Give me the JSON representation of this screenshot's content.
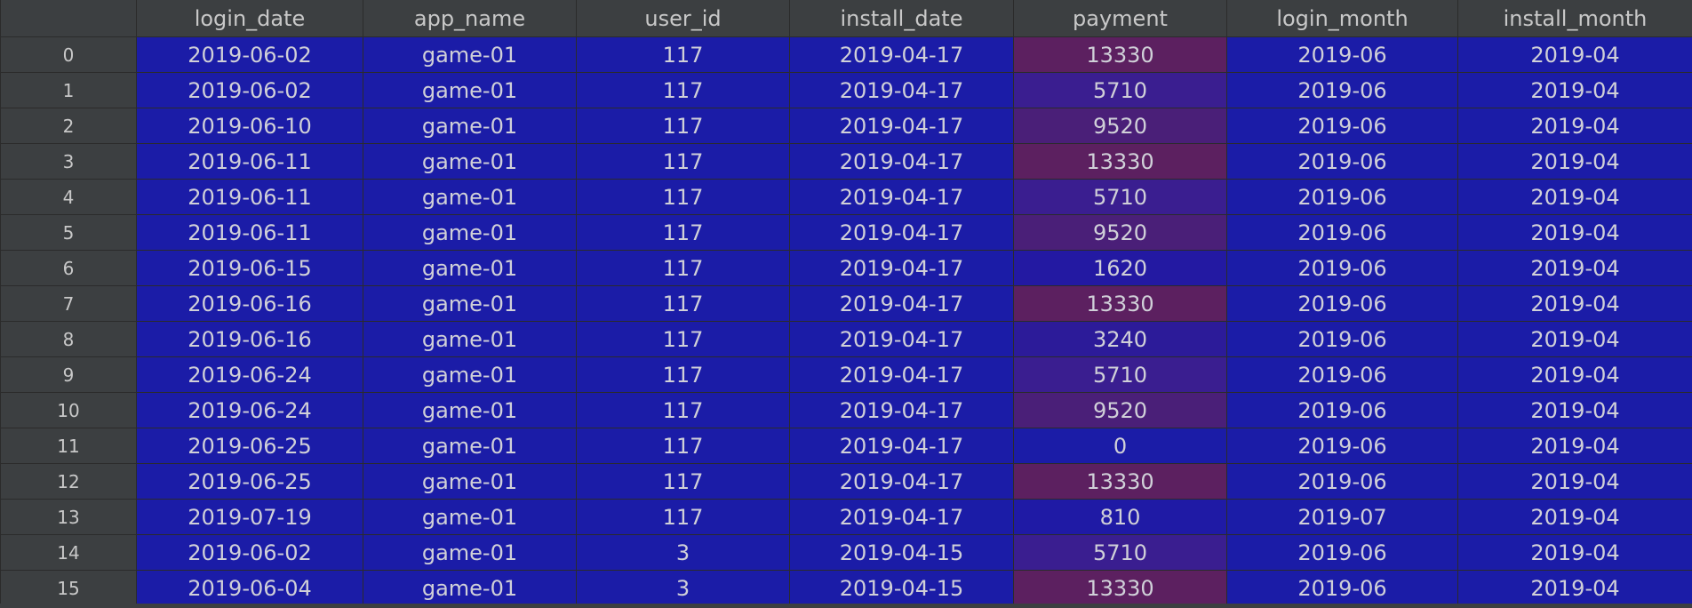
{
  "columns": [
    "",
    "login_date",
    "app_name",
    "user_id",
    "install_date",
    "payment",
    "login_month",
    "install_month"
  ],
  "rows": [
    {
      "index": "0",
      "cells": [
        "2019-06-02",
        "game-01",
        "117",
        "2019-04-17",
        "13330",
        "2019-06",
        "2019-04"
      ],
      "payment_color": "#5c2060"
    },
    {
      "index": "1",
      "cells": [
        "2019-06-02",
        "game-01",
        "117",
        "2019-04-17",
        "5710",
        "2019-06",
        "2019-04"
      ],
      "payment_color": "#3a1e90"
    },
    {
      "index": "2",
      "cells": [
        "2019-06-10",
        "game-01",
        "117",
        "2019-04-17",
        "9520",
        "2019-06",
        "2019-04"
      ],
      "payment_color": "#4a1f78"
    },
    {
      "index": "3",
      "cells": [
        "2019-06-11",
        "game-01",
        "117",
        "2019-04-17",
        "13330",
        "2019-06",
        "2019-04"
      ],
      "payment_color": "#5c2060"
    },
    {
      "index": "4",
      "cells": [
        "2019-06-11",
        "game-01",
        "117",
        "2019-04-17",
        "5710",
        "2019-06",
        "2019-04"
      ],
      "payment_color": "#3a1e90"
    },
    {
      "index": "5",
      "cells": [
        "2019-06-11",
        "game-01",
        "117",
        "2019-04-17",
        "9520",
        "2019-06",
        "2019-04"
      ],
      "payment_color": "#4a1f78"
    },
    {
      "index": "6",
      "cells": [
        "2019-06-15",
        "game-01",
        "117",
        "2019-04-17",
        "1620",
        "2019-06",
        "2019-04"
      ],
      "payment_color": "#2319a2"
    },
    {
      "index": "7",
      "cells": [
        "2019-06-16",
        "game-01",
        "117",
        "2019-04-17",
        "13330",
        "2019-06",
        "2019-04"
      ],
      "payment_color": "#5c2060"
    },
    {
      "index": "8",
      "cells": [
        "2019-06-16",
        "game-01",
        "117",
        "2019-04-17",
        "3240",
        "2019-06",
        "2019-04"
      ],
      "payment_color": "#2c1b99"
    },
    {
      "index": "9",
      "cells": [
        "2019-06-24",
        "game-01",
        "117",
        "2019-04-17",
        "5710",
        "2019-06",
        "2019-04"
      ],
      "payment_color": "#3a1e90"
    },
    {
      "index": "10",
      "cells": [
        "2019-06-24",
        "game-01",
        "117",
        "2019-04-17",
        "9520",
        "2019-06",
        "2019-04"
      ],
      "payment_color": "#4a1f78"
    },
    {
      "index": "11",
      "cells": [
        "2019-06-25",
        "game-01",
        "117",
        "2019-04-17",
        "0",
        "2019-06",
        "2019-04"
      ],
      "payment_color": "#1b1ca7"
    },
    {
      "index": "12",
      "cells": [
        "2019-06-25",
        "game-01",
        "117",
        "2019-04-17",
        "13330",
        "2019-06",
        "2019-04"
      ],
      "payment_color": "#5c2060"
    },
    {
      "index": "13",
      "cells": [
        "2019-07-19",
        "game-01",
        "117",
        "2019-04-17",
        "810",
        "2019-07",
        "2019-04"
      ],
      "payment_color": "#1f1aa5"
    },
    {
      "index": "14",
      "cells": [
        "2019-06-02",
        "game-01",
        "3",
        "2019-04-15",
        "5710",
        "2019-06",
        "2019-04"
      ],
      "payment_color": "#3a1e90"
    },
    {
      "index": "15",
      "cells": [
        "2019-06-04",
        "game-01",
        "3",
        "2019-04-15",
        "13330",
        "2019-06",
        "2019-04"
      ],
      "payment_color": "#5c2060"
    }
  ],
  "colors": {
    "cell_background": "#1b1ca7",
    "header_background": "#3c3f41",
    "grid_line": "#2b2b2b",
    "text": "#c8c8c8"
  }
}
